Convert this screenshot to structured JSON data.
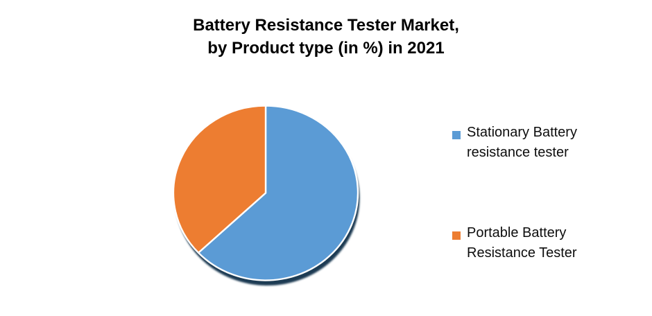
{
  "chart_data": {
    "type": "pie",
    "title": "Battery Resistance Tester Market, by Product type (in %) in 2021",
    "title_display": "Battery Resistance Tester Market,\nby Product type (in %) in 2021",
    "unit": "%",
    "year_shown": "2021",
    "labels": [
      "Stationary Battery resistance tester",
      "Portable Battery Resistance Tester"
    ],
    "values": [
      63,
      37
    ],
    "colors": [
      "#5B9BD5",
      "#ED7D31"
    ],
    "start_angle_deg": 0,
    "direction": "clockwise",
    "legend_position": "right",
    "slice_stroke_color": "#FFFFFF",
    "shadow_color": "#1F3B53",
    "background_color": "#FFFFFF",
    "title_color": "#000000",
    "legend_text_color": "#0D0D0D"
  },
  "legend": {
    "items": [
      {
        "label": "Stationary Battery resistance tester",
        "color": "#5B9BD5"
      },
      {
        "label": "Portable Battery Resistance Tester",
        "color": "#ED7D31"
      }
    ]
  }
}
